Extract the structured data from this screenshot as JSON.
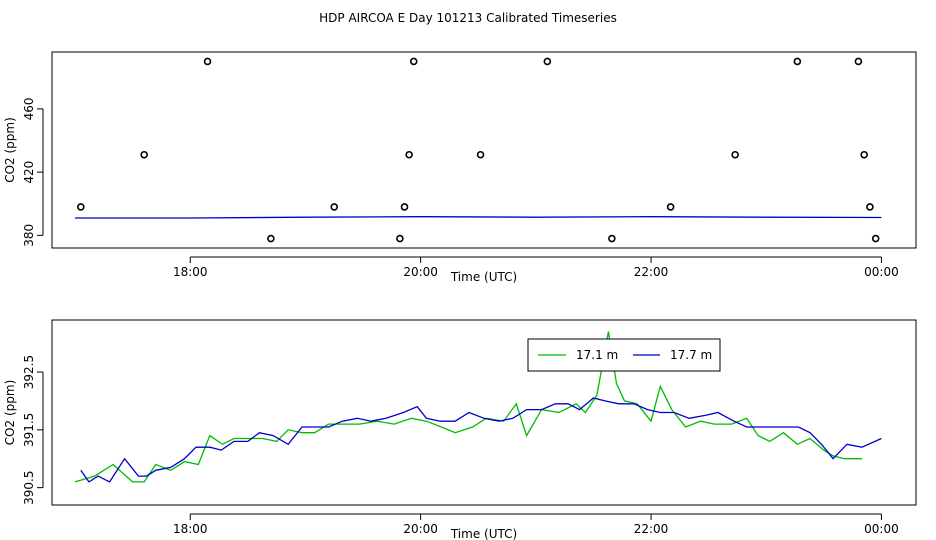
{
  "title": "HDP AIRCOA E  Day 101213  Calibrated Timeseries",
  "colors": {
    "green": "#00bb00",
    "blue": "#0000cc",
    "black": "#000000"
  },
  "chart_data": [
    {
      "type": "scatter",
      "xlabel": "Time (UTC)",
      "ylabel": "CO2 (ppm)",
      "x_ticks": [
        18,
        20,
        22,
        24
      ],
      "x_tick_labels": [
        "18:00",
        "20:00",
        "22:00",
        "00:00"
      ],
      "xlim": [
        16.8,
        24.3
      ],
      "y_ticks": [
        380,
        420,
        460
      ],
      "y_tick_labels": [
        "380",
        "420",
        "460"
      ],
      "ylim": [
        372,
        496
      ],
      "series": [
        {
          "points": [
            [
              17.05,
              398
            ],
            [
              17.6,
              431
            ],
            [
              18.15,
              490
            ],
            [
              18.7,
              378
            ],
            [
              19.25,
              398
            ],
            [
              19.82,
              378
            ],
            [
              19.86,
              398
            ],
            [
              19.9,
              431
            ],
            [
              19.94,
              490
            ],
            [
              20.52,
              431
            ],
            [
              21.1,
              490
            ],
            [
              21.66,
              378
            ],
            [
              22.17,
              398
            ],
            [
              22.73,
              431
            ],
            [
              23.27,
              490
            ],
            [
              23.8,
              490
            ],
            [
              23.85,
              431
            ],
            [
              23.9,
              398
            ],
            [
              23.95,
              378
            ]
          ]
        },
        {
          "values_x": [
            17.0,
            18.0,
            19.0,
            20.0,
            21.0,
            22.0,
            23.0,
            24.0
          ],
          "values_y": [
            391,
            391,
            391.5,
            391.8,
            391.5,
            391.8,
            391.5,
            391.3
          ]
        }
      ]
    },
    {
      "type": "line",
      "xlabel": "Time (UTC)",
      "ylabel": "CO2 (ppm)",
      "x_ticks": [
        18,
        20,
        22,
        24
      ],
      "x_tick_labels": [
        "18:00",
        "20:00",
        "22:00",
        "00:00"
      ],
      "xlim": [
        16.8,
        24.3
      ],
      "y_ticks": [
        390.5,
        391.5,
        392.5
      ],
      "y_tick_labels": [
        "390.5",
        "391.5",
        "392.5"
      ],
      "ylim": [
        390.2,
        393.4
      ],
      "legend_placement": "top-right",
      "series": [
        {
          "name": "17.1 m",
          "color": "green",
          "x": [
            17.0,
            17.17,
            17.33,
            17.5,
            17.6,
            17.7,
            17.83,
            17.95,
            18.07,
            18.17,
            18.28,
            18.38,
            18.5,
            18.63,
            18.75,
            18.85,
            18.97,
            19.08,
            19.2,
            19.32,
            19.47,
            19.62,
            19.77,
            19.92,
            20.05,
            20.18,
            20.3,
            20.45,
            20.57,
            20.72,
            20.83,
            20.92,
            21.05,
            21.2,
            21.35,
            21.43,
            21.53,
            21.63,
            21.7,
            21.77,
            21.88,
            22.0,
            22.08,
            22.18,
            22.3,
            22.43,
            22.55,
            22.7,
            22.83,
            22.93,
            23.03,
            23.15,
            23.27,
            23.38,
            23.5,
            23.58,
            23.68,
            23.83
          ],
          "values": [
            390.6,
            390.7,
            390.9,
            390.6,
            390.6,
            390.9,
            390.8,
            390.95,
            390.9,
            391.4,
            391.25,
            391.35,
            391.35,
            391.35,
            391.3,
            391.5,
            391.45,
            391.45,
            391.6,
            391.6,
            391.6,
            391.65,
            391.6,
            391.7,
            391.65,
            391.55,
            391.45,
            391.55,
            391.7,
            391.65,
            391.95,
            391.4,
            391.85,
            391.8,
            391.95,
            391.8,
            392.1,
            393.2,
            392.3,
            392.0,
            391.95,
            391.65,
            392.25,
            391.85,
            391.55,
            391.65,
            391.6,
            391.6,
            391.7,
            391.4,
            391.3,
            391.45,
            391.25,
            391.35,
            391.15,
            391.05,
            391.0,
            391.0
          ]
        },
        {
          "name": "17.7 m",
          "color": "blue",
          "x": [
            17.05,
            17.12,
            17.2,
            17.3,
            17.43,
            17.55,
            17.62,
            17.7,
            17.83,
            17.95,
            18.05,
            18.17,
            18.27,
            18.38,
            18.5,
            18.6,
            18.72,
            18.85,
            18.97,
            19.08,
            19.2,
            19.32,
            19.45,
            19.57,
            19.7,
            19.85,
            19.97,
            20.05,
            20.17,
            20.3,
            20.42,
            20.55,
            20.68,
            20.8,
            20.92,
            21.05,
            21.17,
            21.28,
            21.38,
            21.5,
            21.6,
            21.72,
            21.85,
            21.97,
            22.08,
            22.2,
            22.33,
            22.47,
            22.58,
            22.72,
            22.83,
            22.95,
            23.07,
            23.18,
            23.28,
            23.38,
            23.48,
            23.58,
            23.7,
            23.83,
            24.0
          ],
          "values": [
            390.8,
            390.6,
            390.7,
            390.6,
            391.0,
            390.7,
            390.7,
            390.8,
            390.85,
            391.0,
            391.2,
            391.2,
            391.15,
            391.3,
            391.3,
            391.45,
            391.4,
            391.25,
            391.55,
            391.55,
            391.55,
            391.65,
            391.7,
            391.65,
            391.7,
            391.8,
            391.9,
            391.7,
            391.65,
            391.65,
            391.8,
            391.7,
            391.65,
            391.7,
            391.85,
            391.85,
            391.95,
            391.95,
            391.85,
            392.05,
            392.0,
            391.95,
            391.95,
            391.85,
            391.8,
            391.8,
            391.7,
            391.75,
            391.8,
            391.65,
            391.55,
            391.55,
            391.55,
            391.55,
            391.55,
            391.45,
            391.25,
            391.0,
            391.25,
            391.2,
            391.35
          ]
        }
      ]
    }
  ]
}
